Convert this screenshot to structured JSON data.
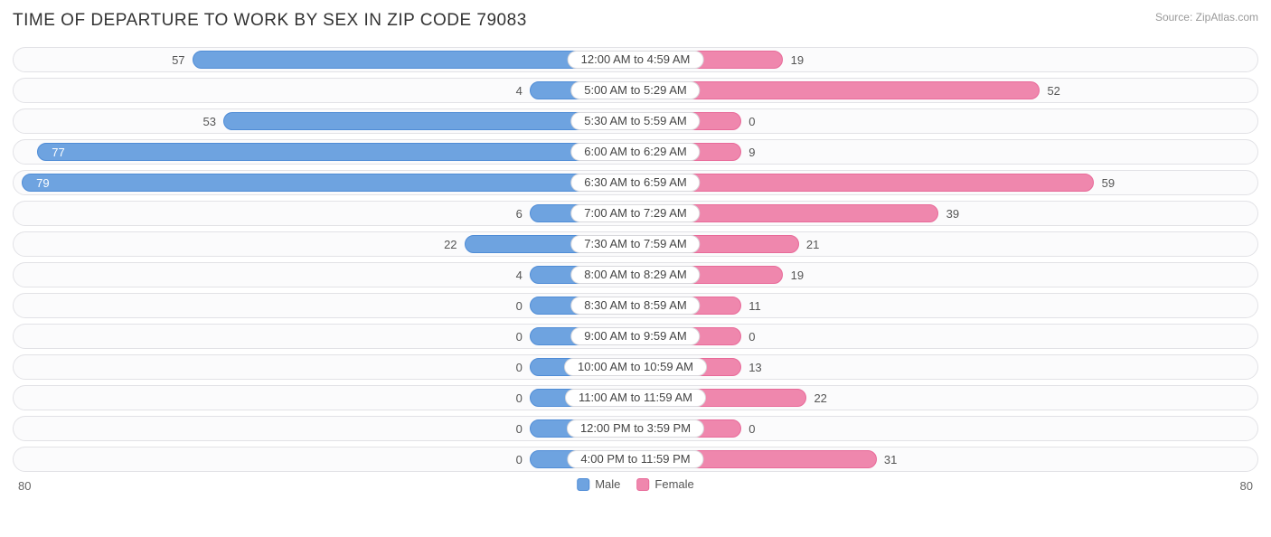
{
  "title": "TIME OF DEPARTURE TO WORK BY SEX IN ZIP CODE 79083",
  "source": "Source: ZipAtlas.com",
  "axis_max": 80,
  "axis_label": "80",
  "colors": {
    "male_fill": "#6ea3e0",
    "male_border": "#4f8cd6",
    "female_fill": "#ef87ad",
    "female_border": "#e86a99",
    "row_bg": "#fbfbfc",
    "row_border": "#e2e2e6",
    "pill_bg": "#ffffff",
    "pill_border": "#d8d8dc",
    "text": "#555555",
    "title_text": "#333333"
  },
  "min_bar_pct": 8.5,
  "legend": [
    {
      "label": "Male",
      "color_key": "male"
    },
    {
      "label": "Female",
      "color_key": "female"
    }
  ],
  "rows": [
    {
      "label": "12:00 AM to 4:59 AM",
      "male": 57,
      "female": 19
    },
    {
      "label": "5:00 AM to 5:29 AM",
      "male": 4,
      "female": 52
    },
    {
      "label": "5:30 AM to 5:59 AM",
      "male": 53,
      "female": 0
    },
    {
      "label": "6:00 AM to 6:29 AM",
      "male": 77,
      "female": 9
    },
    {
      "label": "6:30 AM to 6:59 AM",
      "male": 79,
      "female": 59
    },
    {
      "label": "7:00 AM to 7:29 AM",
      "male": 6,
      "female": 39
    },
    {
      "label": "7:30 AM to 7:59 AM",
      "male": 22,
      "female": 21
    },
    {
      "label": "8:00 AM to 8:29 AM",
      "male": 4,
      "female": 19
    },
    {
      "label": "8:30 AM to 8:59 AM",
      "male": 0,
      "female": 11
    },
    {
      "label": "9:00 AM to 9:59 AM",
      "male": 0,
      "female": 0
    },
    {
      "label": "10:00 AM to 10:59 AM",
      "male": 0,
      "female": 13
    },
    {
      "label": "11:00 AM to 11:59 AM",
      "male": 0,
      "female": 22
    },
    {
      "label": "12:00 PM to 3:59 PM",
      "male": 0,
      "female": 0
    },
    {
      "label": "4:00 PM to 11:59 PM",
      "male": 0,
      "female": 31
    }
  ]
}
